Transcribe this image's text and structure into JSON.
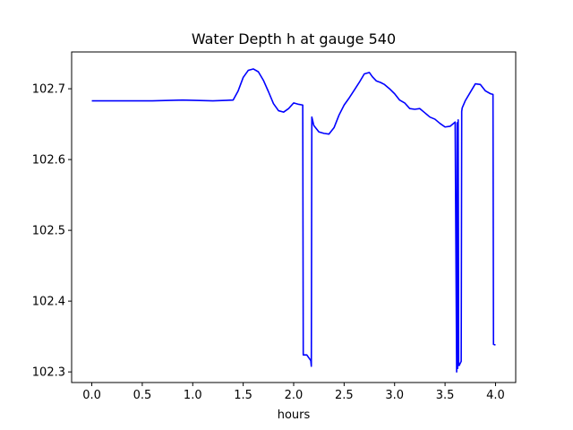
{
  "chart_data": {
    "type": "line",
    "title": "Water Depth h at gauge 540",
    "xlabel": "hours",
    "ylabel": "",
    "xlim": [
      -0.2,
      4.2
    ],
    "ylim": [
      102.285,
      102.752
    ],
    "xticks": [
      0.0,
      0.5,
      1.0,
      1.5,
      2.0,
      2.5,
      3.0,
      3.5,
      4.0
    ],
    "xtick_labels": [
      "0.0",
      "0.5",
      "1.0",
      "1.5",
      "2.0",
      "2.5",
      "3.0",
      "3.5",
      "4.0"
    ],
    "yticks": [
      102.3,
      102.4,
      102.5,
      102.6,
      102.7
    ],
    "ytick_labels": [
      "102.3",
      "102.4",
      "102.5",
      "102.6",
      "102.7"
    ],
    "grid": false,
    "legend": "none",
    "series": [
      {
        "color": "#0000ff",
        "x": [
          0.0,
          0.3,
          0.6,
          0.9,
          1.2,
          1.4,
          1.45,
          1.5,
          1.55,
          1.6,
          1.65,
          1.7,
          1.75,
          1.8,
          1.85,
          1.9,
          1.95,
          2.0,
          2.05,
          2.09,
          2.095,
          2.13,
          2.17,
          2.175,
          2.18,
          2.2,
          2.25,
          2.3,
          2.35,
          2.4,
          2.45,
          2.5,
          2.55,
          2.6,
          2.65,
          2.7,
          2.75,
          2.78,
          2.82,
          2.86,
          2.9,
          2.95,
          3.0,
          3.05,
          3.1,
          3.15,
          3.2,
          3.25,
          3.3,
          3.35,
          3.4,
          3.45,
          3.5,
          3.55,
          3.6,
          3.615,
          3.62,
          3.625,
          3.63,
          3.635,
          3.64,
          3.66,
          3.665,
          3.67,
          3.7,
          3.75,
          3.8,
          3.85,
          3.9,
          3.95,
          3.975,
          3.98,
          4.0
        ],
        "y": [
          102.683,
          102.683,
          102.683,
          102.684,
          102.683,
          102.684,
          102.697,
          102.716,
          102.726,
          102.728,
          102.724,
          102.712,
          102.696,
          102.679,
          102.669,
          102.667,
          102.672,
          102.68,
          102.678,
          102.677,
          102.324,
          102.324,
          102.316,
          102.308,
          102.66,
          102.648,
          102.639,
          102.637,
          102.636,
          102.645,
          102.663,
          102.677,
          102.687,
          102.698,
          102.709,
          102.721,
          102.723,
          102.717,
          102.711,
          102.709,
          102.706,
          102.7,
          102.693,
          102.684,
          102.68,
          102.672,
          102.671,
          102.672,
          102.666,
          102.66,
          102.657,
          102.651,
          102.646,
          102.647,
          102.653,
          102.3,
          102.652,
          102.305,
          102.656,
          102.31,
          102.309,
          102.315,
          102.668,
          102.673,
          102.683,
          102.695,
          102.707,
          102.706,
          102.697,
          102.693,
          102.692,
          102.339,
          102.338
        ]
      }
    ]
  }
}
